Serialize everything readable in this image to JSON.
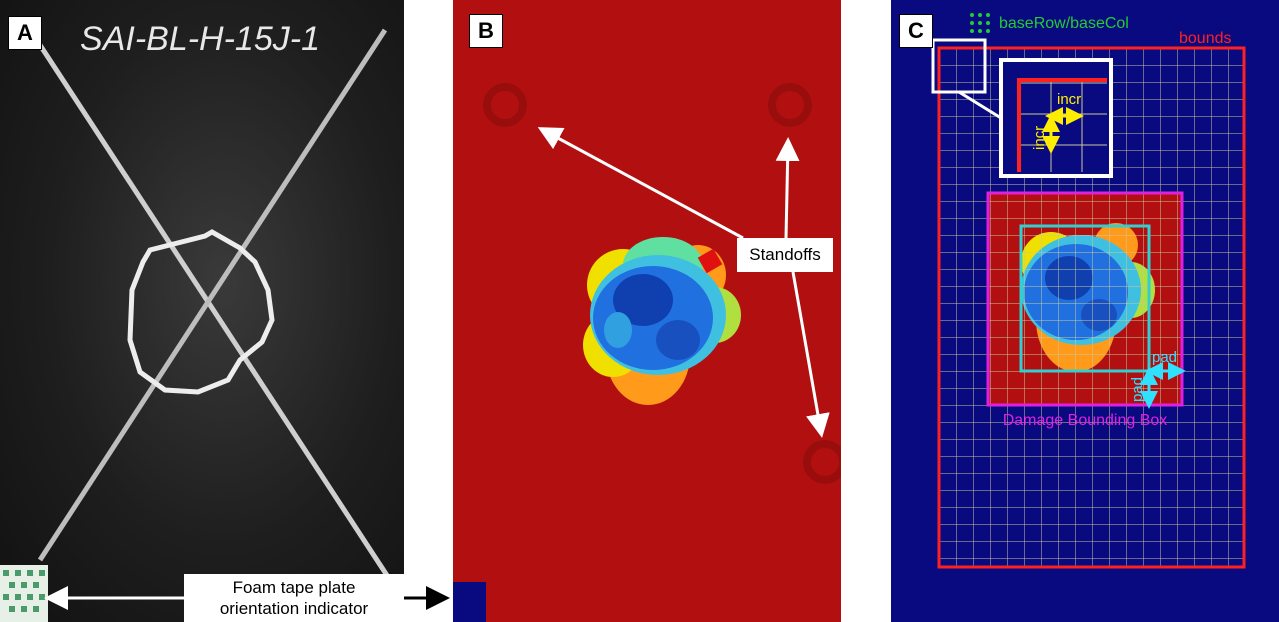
{
  "panels": {
    "a": {
      "label": "A",
      "plate_marking": "SAI-BL-H-15J-1"
    },
    "b": {
      "label": "B"
    },
    "c": {
      "label": "C"
    }
  },
  "callouts": {
    "foam_tape": [
      "Foam tape plate",
      "orientation indicator"
    ],
    "standoffs": "Standoffs"
  },
  "diagram_c": {
    "legend_base": "baseRow/baseCol",
    "bounds": "bounds",
    "incr_h": "incr",
    "incr_v": "incr",
    "pad_h": "pad",
    "pad_v": "pad",
    "damage_box": "Damage Bounding Box"
  },
  "colors": {
    "panel_b_background": "#b21010",
    "panel_c_background": "#0a0a80",
    "bounds": "#ff2020",
    "damage_box": "#e020e0",
    "inner_box": "#30d0d0",
    "incr_arrows": "#ffee00",
    "pad_arrows": "#30e0ff",
    "legend_dots": "#22cc33",
    "grid": "#c8c8a0"
  }
}
